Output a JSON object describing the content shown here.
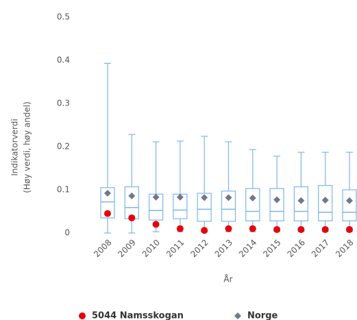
{
  "chart_data": {
    "type": "box",
    "y_axis_label": [
      "Indikatorverdi",
      "(Høy verdi, høy andel)"
    ],
    "x_axis_label": "År",
    "categories": [
      "2008",
      "2009",
      "2010",
      "2011",
      "2012",
      "2013",
      "2014",
      "2015",
      "2016",
      "2017",
      "2018"
    ],
    "box": {
      "color": "#7cb5ec",
      "min": [
        0,
        0,
        0.003,
        0.003,
        0.003,
        0.003,
        0.003,
        0.003,
        0.003,
        0.003,
        0.003
      ],
      "q1": [
        0.035,
        0.033,
        0.03,
        0.033,
        0.027,
        0.027,
        0.028,
        0.028,
        0.028,
        0.028,
        0.028
      ],
      "median": [
        0.072,
        0.059,
        0.052,
        0.053,
        0.055,
        0.055,
        0.05,
        0.05,
        0.05,
        0.048,
        0.048
      ],
      "q3": [
        0.105,
        0.107,
        0.09,
        0.09,
        0.092,
        0.097,
        0.103,
        0.103,
        0.107,
        0.11,
        0.1
      ],
      "max": [
        0.393,
        0.228,
        0.211,
        0.213,
        0.224,
        0.211,
        0.193,
        0.178,
        0.187,
        0.187,
        0.187
      ]
    },
    "series": [
      {
        "name": "5044 Namsskogan",
        "color": "#e8000b",
        "marker": "circle",
        "values": [
          0.045,
          0.035,
          0.02,
          0.01,
          0.006,
          0.01,
          0.01,
          0.008,
          0.008,
          0.008,
          0.008
        ]
      },
      {
        "name": "Norge",
        "color": "#6e7a8a",
        "marker": "diamond",
        "values": [
          0.092,
          0.086,
          0.083,
          0.083,
          0.082,
          0.082,
          0.081,
          0.077,
          0.075,
          0.076,
          0.075
        ]
      }
    ],
    "ylim": [
      0,
      0.5
    ],
    "yticks": [
      0,
      0.1,
      0.2,
      0.3,
      0.4,
      0.5
    ]
  }
}
